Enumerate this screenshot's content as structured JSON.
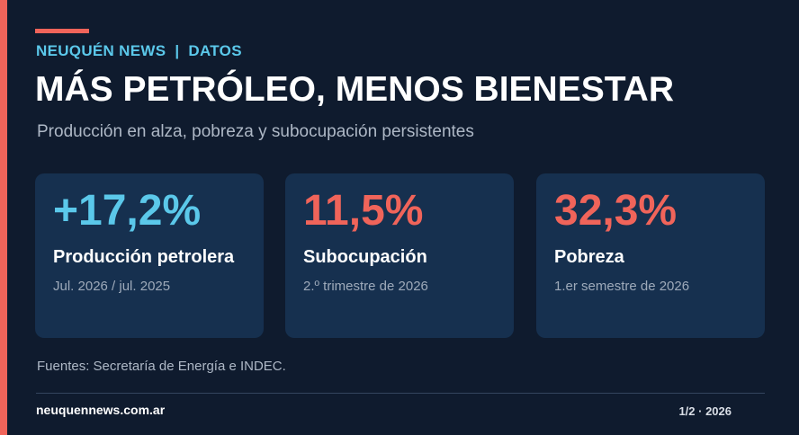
{
  "header": {
    "brand": "NEUQUÉN NEWS",
    "separator": "|",
    "section": "DATOS",
    "title": "MÁS PETRÓLEO, MENOS BIENESTAR",
    "subtitle": "Producción en alza, pobreza y subocupación persistentes"
  },
  "colors": {
    "accent": "#f0645a",
    "highlight_blue": "#5bc8ea",
    "background": "#0f1b2e",
    "card": "#16304f"
  },
  "cards": [
    {
      "value": "+17,2%",
      "name": "Producción petrolera",
      "period": "Jul. 2026 / jul. 2025",
      "value_color": "#5bc8ea"
    },
    {
      "value": "11,5%",
      "name": "Subocupación",
      "period": "2.º trimestre de 2026",
      "value_color": "#f0645a"
    },
    {
      "value": "32,3%",
      "name": "Pobreza",
      "period": "1.er semestre de 2026",
      "value_color": "#f0645a"
    }
  ],
  "footer": {
    "sources": "Fuentes: Secretaría de Energía e INDEC.",
    "site": "neuquennews.com.ar",
    "page": "1/2 · 2026"
  }
}
